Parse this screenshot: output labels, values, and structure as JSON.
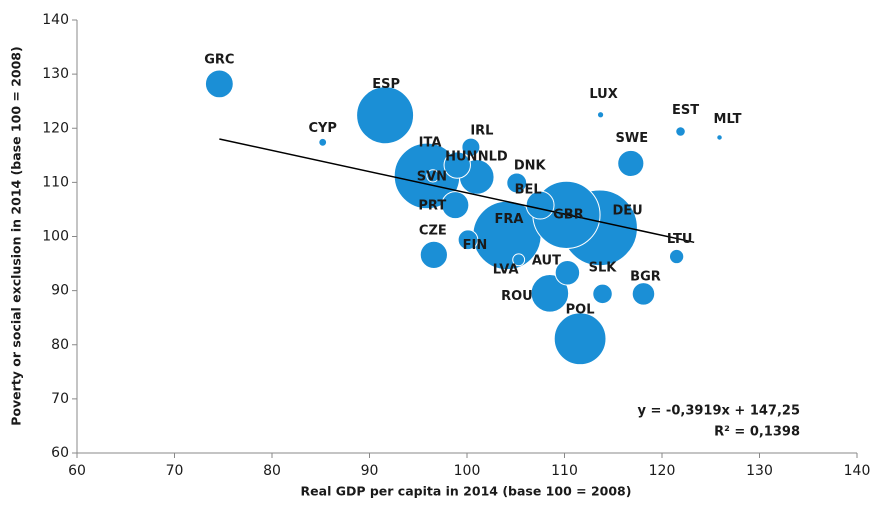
{
  "chart_data": {
    "type": "bubble",
    "x_label": "Real GDP per capita in 2014 (base 100 = 2008)",
    "y_label": "Poverty or social exclusion in 2014 (base 100 = 2008)",
    "xlim": [
      60,
      140
    ],
    "xticks": [
      60,
      70,
      80,
      90,
      100,
      110,
      120,
      130,
      140
    ],
    "ylim": [
      60,
      140
    ],
    "yticks": [
      60,
      70,
      80,
      90,
      100,
      110,
      120,
      130,
      140
    ],
    "color": "#1b8fd6",
    "labels": [
      "GRC",
      "ESP",
      "CYP",
      "ITA",
      "SVN",
      "HUN",
      "IRL",
      "NLD",
      "DNK",
      "PRT",
      "FRA",
      "FIN",
      "LVA",
      "CZE",
      "GBR",
      "DEU",
      "AUT",
      "SLK",
      "ROU",
      "POL",
      "BGR",
      "LTU",
      "SWE",
      "LUX",
      "EST",
      "MLT",
      "BEL"
    ],
    "x": [
      74.6,
      91.6,
      85.2,
      95.9,
      96.5,
      99.0,
      100.4,
      101.0,
      105.1,
      98.8,
      104.1,
      100.1,
      105.3,
      96.6,
      110.2,
      113.6,
      110.3,
      113.9,
      108.5,
      111.6,
      118.1,
      121.5,
      116.8,
      113.7,
      121.9,
      125.9,
      107.5
    ],
    "values": [
      128.2,
      122.4,
      117.4,
      111.2,
      111.2,
      113.2,
      116.5,
      111.0,
      109.9,
      105.8,
      100.2,
      99.4,
      95.7,
      96.6,
      104.0,
      101.6,
      93.3,
      89.4,
      89.5,
      81.1,
      89.4,
      96.3,
      113.5,
      122.5,
      119.4,
      118.3,
      105.8
    ],
    "sizes": [
      11,
      46,
      0.86,
      61,
      2.1,
      9.9,
      4.6,
      17,
      5.6,
      10.4,
      66,
      5.5,
      2.0,
      10.5,
      64,
      81,
      8.5,
      5.4,
      20,
      38,
      7.2,
      2.9,
      9.7,
      0.55,
      1.3,
      0.43,
      11
    ],
    "trendline": {
      "slope": -0.3919,
      "intercept": 147.25,
      "x_range": [
        74.6,
        123.3
      ],
      "color": "#000000"
    },
    "annotations": [
      "y = -0,3919x + 147,25",
      "R² = 0,1398"
    ]
  }
}
